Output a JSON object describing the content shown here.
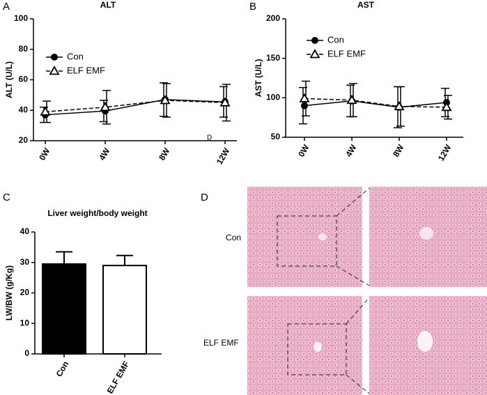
{
  "panel_labels": [
    "A",
    "B",
    "C",
    "D"
  ],
  "chart_data": [
    {
      "type": "line",
      "title": "ALT",
      "y_label": "ALT (U/L)",
      "annotation": "D",
      "categories": [
        "0W",
        "4W",
        "8W",
        "12W"
      ],
      "series": [
        {
          "name": "Con",
          "color": "#000000",
          "marker": "circle",
          "dashed": false,
          "values": [
            37,
            39.5,
            47,
            45.5
          ],
          "errors": [
            5,
            7,
            11,
            10
          ]
        },
        {
          "name": "ELF EMF",
          "color": "#000000",
          "marker": "triangle",
          "dashed": true,
          "values": [
            39,
            42,
            46.5,
            45
          ],
          "errors": [
            7,
            11,
            11,
            12
          ]
        }
      ],
      "ylim": [
        20,
        100
      ],
      "yticks": [
        20,
        40,
        60,
        80,
        100
      ],
      "legend": "upper left"
    },
    {
      "type": "line",
      "title": "AST",
      "y_label": "AST (U/L)",
      "categories": [
        "0W",
        "4W",
        "8W",
        "12W"
      ],
      "series": [
        {
          "name": "Con",
          "color": "#000000",
          "marker": "circle",
          "dashed": false,
          "values": [
            90,
            96,
            88,
            94
          ],
          "errors": [
            23,
            20,
            26,
            18
          ]
        },
        {
          "name": "ELF EMF",
          "color": "#000000",
          "marker": "triangle",
          "dashed": true,
          "values": [
            99,
            97,
            89,
            88
          ],
          "errors": [
            22,
            21,
            25,
            15
          ]
        }
      ],
      "ylim": [
        50,
        200
      ],
      "yticks": [
        50,
        100,
        150,
        200
      ],
      "legend": "upper left"
    },
    {
      "type": "bar",
      "title": "Liver weight/body weight",
      "y_label": "LW/BW (g/Kg)",
      "categories": [
        "Con",
        "ELF EMF"
      ],
      "values": [
        29.5,
        29
      ],
      "errors": [
        4,
        3.3
      ],
      "colors": [
        "#000000",
        "#ffffff"
      ],
      "ylim": [
        0,
        40
      ],
      "yticks": [
        0,
        10,
        20,
        30,
        40
      ]
    }
  ],
  "histology": {
    "rows": [
      "Con",
      "ELF EMF"
    ]
  }
}
